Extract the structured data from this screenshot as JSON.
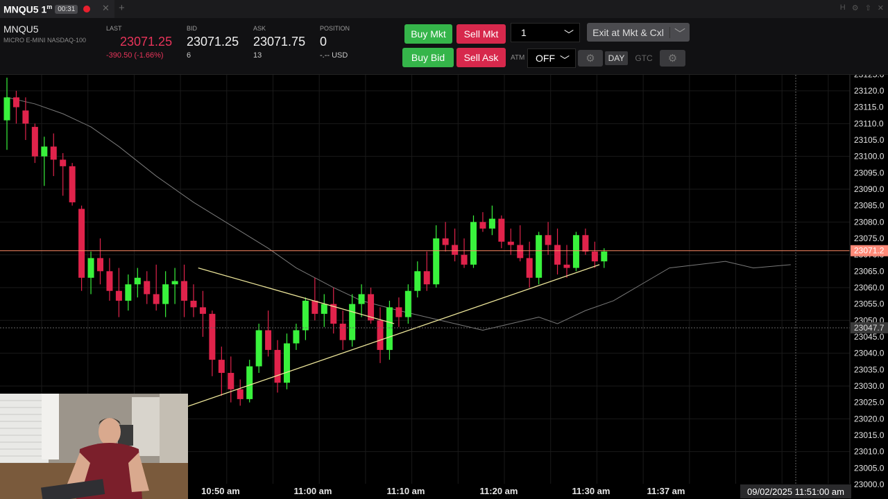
{
  "tab": {
    "title": "MNQU5 1",
    "superscript": "m",
    "timer": "00:31",
    "close_icon": "close-icon",
    "add_icon": "plus-icon"
  },
  "window_icons": [
    "H",
    "gear-icon",
    "up-icon",
    "close-icon"
  ],
  "instrument": {
    "symbol": "MNQU5",
    "description": "MICRO E-MINI NASDAQ-100"
  },
  "quotes": {
    "last": {
      "label": "LAST",
      "value": "23071.25",
      "change": "-390.50 (-1.66%)"
    },
    "bid": {
      "label": "BID",
      "value": "23071.25",
      "size": "6"
    },
    "ask": {
      "label": "ASK",
      "value": "23071.75",
      "size": "13"
    },
    "position": {
      "label": "POSITION",
      "value": "0",
      "pnl": "-.-- USD"
    }
  },
  "order_panel": {
    "buy_mkt": "Buy Mkt",
    "sell_mkt": "Sell Mkt",
    "buy_bid": "Buy Bid",
    "sell_ask": "Sell Ask",
    "quantity": "1",
    "exit_label": "Exit at Mkt & Cxl",
    "atm_label": "ATM",
    "atm_value": "OFF",
    "tif_day": "DAY",
    "tif_gtc": "GTC"
  },
  "chart_data": {
    "type": "candlestick",
    "symbol": "MNQU5",
    "interval": "1m",
    "y_ticks": [
      "23125.0",
      "23120.0",
      "23115.0",
      "23110.0",
      "23105.0",
      "23100.0",
      "23095.0",
      "23090.0",
      "23085.0",
      "23080.0",
      "23075.0",
      "23070.0",
      "23065.0",
      "23060.0",
      "23055.0",
      "23050.0",
      "23045.0",
      "23040.0",
      "23035.0",
      "23030.0",
      "23025.0",
      "23020.0",
      "23015.0",
      "23010.0",
      "23005.0",
      "23000.0"
    ],
    "price_label": "23071.2",
    "crosshair_label": "23047.7",
    "last_price": 23071.25,
    "crosshair_price": 23047.75,
    "x_labels": [
      "10:50 am",
      "11:00 am",
      "11:10 am",
      "11:20 am",
      "11:30 am",
      "11:37 am"
    ],
    "crosshair_time": "09/02/2025 11:51:00 am",
    "grid": true,
    "colors": {
      "up": "#39f23c",
      "down": "#e0234b",
      "price_line": "#ff8a65",
      "trendline": "#ede69a",
      "ma": "#7a7a7a"
    },
    "candles": [
      [
        23111,
        23124,
        23102,
        23118
      ],
      [
        23118,
        23120,
        23110,
        23115
      ],
      [
        23114,
        23118,
        23105,
        23110
      ],
      [
        23109,
        23110,
        23098,
        23100
      ],
      [
        23100,
        23106,
        23091,
        23103
      ],
      [
        23103,
        23107,
        23094,
        23099
      ],
      [
        23099,
        23101,
        23088,
        23097
      ],
      [
        23097,
        23098,
        23085,
        23086
      ],
      [
        23084,
        23085,
        23059,
        23063
      ],
      [
        23063,
        23071,
        23058,
        23069
      ],
      [
        23069,
        23075,
        23061,
        23065
      ],
      [
        23065,
        23069,
        23056,
        23059
      ],
      [
        23059,
        23066,
        23051,
        23056
      ],
      [
        23056,
        23064,
        23053,
        23061
      ],
      [
        23061,
        23066,
        23057,
        23063
      ],
      [
        23062,
        23065,
        23055,
        23058
      ],
      [
        23058,
        23067,
        23053,
        23055
      ],
      [
        23055,
        23065,
        23051,
        23061
      ],
      [
        23061,
        23066,
        23055,
        23062
      ],
      [
        23062,
        23067,
        23051,
        23056
      ],
      [
        23056,
        23061,
        23051,
        23054
      ],
      [
        23054,
        23059,
        23045,
        23052
      ],
      [
        23052,
        23053,
        23033,
        23038
      ],
      [
        23038,
        23042,
        23027,
        23034
      ],
      [
        23034,
        23039,
        23025,
        23029
      ],
      [
        23029,
        23032,
        23024,
        23026
      ],
      [
        23026,
        23038,
        23025,
        23036
      ],
      [
        23036,
        23049,
        23034,
        23047
      ],
      [
        23047,
        23053,
        23039,
        23041
      ],
      [
        23041,
        23044,
        23028,
        23031
      ],
      [
        23031,
        23046,
        23029,
        23043
      ],
      [
        23043,
        23049,
        23041,
        23047
      ],
      [
        23047,
        23057,
        23044,
        23056
      ],
      [
        23056,
        23063,
        23050,
        23052
      ],
      [
        23052,
        23058,
        23048,
        23055
      ],
      [
        23055,
        23060,
        23046,
        23049
      ],
      [
        23049,
        23053,
        23041,
        23044
      ],
      [
        23044,
        23058,
        23042,
        23055
      ],
      [
        23055,
        23061,
        23051,
        23058
      ],
      [
        23058,
        23060,
        23049,
        23050
      ],
      [
        23050,
        23054,
        23037,
        23041
      ],
      [
        23041,
        23056,
        23038,
        23054
      ],
      [
        23054,
        23057,
        23048,
        23051
      ],
      [
        23051,
        23061,
        23049,
        23059
      ],
      [
        23059,
        23068,
        23057,
        23065
      ],
      [
        23065,
        23071,
        23059,
        23061
      ],
      [
        23061,
        23079,
        23060,
        23075
      ],
      [
        23075,
        23080,
        23071,
        23073
      ],
      [
        23073,
        23078,
        23068,
        23070
      ],
      [
        23070,
        23075,
        23066,
        23067
      ],
      [
        23067,
        23082,
        23066,
        23080
      ],
      [
        23080,
        23083,
        23077,
        23078
      ],
      [
        23078,
        23085,
        23076,
        23081
      ],
      [
        23081,
        23082,
        23072,
        23074
      ],
      [
        23074,
        23078,
        23070,
        23073
      ],
      [
        23073,
        23079,
        23068,
        23069
      ],
      [
        23069,
        23074,
        23060,
        23063
      ],
      [
        23063,
        23077,
        23061,
        23076
      ],
      [
        23076,
        23080,
        23070,
        23073
      ],
      [
        23073,
        23078,
        23064,
        23067
      ],
      [
        23067,
        23073,
        23063,
        23066
      ],
      [
        23066,
        23077,
        23065,
        23076
      ],
      [
        23076,
        23078,
        23070,
        23071
      ],
      [
        23071,
        23074,
        23066,
        23068
      ],
      [
        23068,
        23072,
        23066,
        23071
      ]
    ],
    "moving_average": [
      [
        23118,
        0
      ],
      [
        23116,
        3
      ],
      [
        23113,
        6
      ],
      [
        23109,
        9
      ],
      [
        23103,
        12
      ],
      [
        23094,
        16
      ],
      [
        23086,
        20
      ],
      [
        23079,
        24
      ],
      [
        23072,
        28
      ],
      [
        23066,
        31
      ],
      [
        23060,
        35
      ],
      [
        23056,
        38
      ],
      [
        23053,
        42
      ],
      [
        23051,
        45
      ],
      [
        23049,
        48
      ],
      [
        23047,
        51
      ],
      [
        23049,
        54
      ],
      [
        23051,
        57
      ],
      [
        23049,
        59
      ],
      [
        23053,
        62
      ],
      [
        23056,
        65
      ],
      [
        23061,
        68
      ],
      [
        23066,
        71
      ],
      [
        23067,
        74
      ],
      [
        23068,
        77
      ],
      [
        23066,
        80
      ],
      [
        23067,
        84
      ]
    ],
    "trendlines": [
      {
        "from": [
          23066,
          20.5
        ],
        "to": [
          23049,
          41.5
        ]
      },
      {
        "from": [
          23020,
          15.5
        ],
        "to": [
          23067,
          63.5
        ]
      }
    ],
    "webcam_note": "webcam overlay"
  }
}
